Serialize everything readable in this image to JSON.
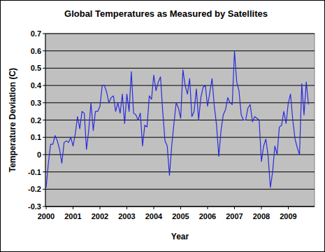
{
  "chart_data": {
    "type": "line",
    "title": "Global Temperatures as Measured by Satellites",
    "x_label": "Year",
    "y_label": "Temperature Deviation (C)",
    "categories": [
      "2000",
      null,
      null,
      null,
      null,
      null,
      null,
      null,
      null,
      null,
      null,
      null,
      "2001",
      null,
      null,
      null,
      null,
      null,
      null,
      null,
      null,
      null,
      null,
      null,
      "2002",
      null,
      null,
      null,
      null,
      null,
      null,
      null,
      null,
      null,
      null,
      null,
      "2003",
      null,
      null,
      null,
      null,
      null,
      null,
      null,
      null,
      null,
      null,
      null,
      "2004",
      null,
      null,
      null,
      null,
      null,
      null,
      null,
      null,
      null,
      null,
      null,
      "2005",
      null,
      null,
      null,
      null,
      null,
      null,
      null,
      null,
      null,
      null,
      null,
      "2006",
      null,
      null,
      null,
      null,
      null,
      null,
      null,
      null,
      null,
      null,
      null,
      "2007",
      null,
      null,
      null,
      null,
      null,
      null,
      null,
      null,
      null,
      null,
      null,
      "2008",
      null,
      null,
      null,
      null,
      null,
      null,
      null,
      null,
      null,
      null,
      null,
      "2009",
      null,
      null,
      null,
      null,
      null,
      null,
      null,
      null,
      null
    ],
    "values": [
      -0.19,
      -0.05,
      0.06,
      0.06,
      0.11,
      0.08,
      0.03,
      -0.05,
      0.07,
      0.08,
      0.07,
      0.1,
      0.05,
      0.12,
      0.22,
      0.15,
      0.25,
      0.24,
      0.03,
      0.14,
      0.3,
      0.14,
      0.25,
      0.25,
      0.28,
      0.4,
      0.4,
      0.36,
      0.3,
      0.33,
      0.34,
      0.25,
      0.3,
      0.24,
      0.35,
      0.18,
      0.35,
      0.25,
      0.48,
      0.24,
      0.23,
      0.2,
      0.24,
      0.05,
      0.17,
      0.16,
      0.34,
      0.32,
      0.46,
      0.37,
      0.42,
      0.45,
      0.25,
      0.08,
      0.05,
      -0.12,
      0.05,
      0.18,
      0.3,
      0.27,
      0.21,
      0.49,
      0.4,
      0.35,
      0.44,
      0.22,
      0.25,
      0.38,
      0.2,
      0.33,
      0.39,
      0.4,
      0.28,
      0.36,
      0.44,
      0.28,
      0.17,
      -0.01,
      0.14,
      0.23,
      0.26,
      0.33,
      0.3,
      0.29,
      0.6,
      0.42,
      0.37,
      0.23,
      0.2,
      0.2,
      0.27,
      0.29,
      0.19,
      0.22,
      0.21,
      0.2,
      -0.04,
      0.05,
      0.09,
      -0.01,
      -0.19,
      -0.1,
      0.05,
      0.0,
      0.16,
      0.17,
      0.25,
      0.18,
      0.3,
      0.35,
      0.2,
      0.09,
      0.04,
      0.0,
      0.41,
      0.23,
      0.42,
      0.29
    ],
    "color": "#2b2bdc",
    "ylim": [
      -0.3,
      0.7
    ],
    "yticks": [
      -0.3,
      -0.2,
      -0.1,
      0,
      0.1,
      0.2,
      0.3,
      0.4,
      0.5,
      0.6,
      0.7
    ],
    "grid": true
  }
}
